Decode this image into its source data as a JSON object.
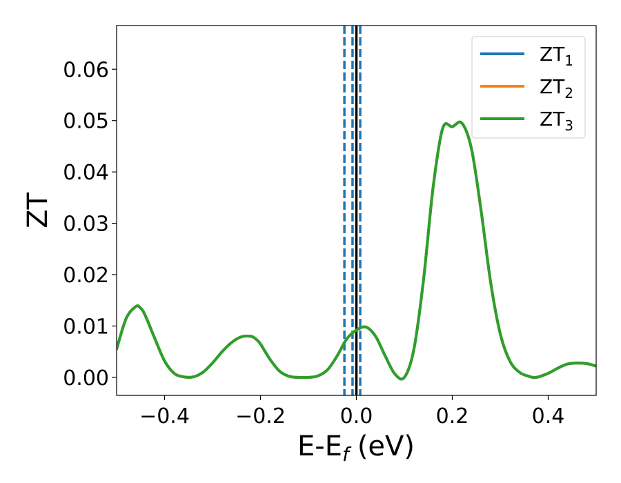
{
  "chart_data": {
    "type": "line",
    "title": "",
    "xlabel": {
      "main": "E-E",
      "sub": "f",
      "unit": "(eV)"
    },
    "ylabel": "ZT",
    "xlim": [
      -0.5,
      0.5
    ],
    "ylim": [
      -0.0035,
      0.0685
    ],
    "x_ticks": [
      -0.4,
      -0.2,
      0.0,
      0.2,
      0.4
    ],
    "x_tick_labels": [
      "−0.4",
      "−0.2",
      "0.0",
      "0.2",
      "0.4"
    ],
    "y_ticks": [
      0.0,
      0.01,
      0.02,
      0.03,
      0.04,
      0.05,
      0.06
    ],
    "y_tick_labels": [
      "0.00",
      "0.01",
      "0.02",
      "0.03",
      "0.04",
      "0.05",
      "0.06"
    ],
    "grid": false,
    "legend_position": "top-right",
    "vlines": [
      {
        "x": -0.025,
        "style": "dashed",
        "color": "#1f77b4"
      },
      {
        "x": -0.008,
        "style": "dashed",
        "color": "#1f77b4"
      },
      {
        "x": 0.008,
        "style": "dashed",
        "color": "#1f77b4"
      },
      {
        "x": 0.0,
        "style": "solid",
        "color": "#000000"
      }
    ],
    "series": [
      {
        "name": {
          "main": "ZT",
          "sub": "1"
        },
        "color": "#1f77b4",
        "x": [
          -0.5,
          -0.48,
          -0.46,
          -0.45,
          -0.44,
          -0.42,
          -0.4,
          -0.38,
          -0.36,
          -0.34,
          -0.32,
          -0.3,
          -0.28,
          -0.26,
          -0.24,
          -0.22,
          -0.21,
          -0.2,
          -0.18,
          -0.16,
          -0.14,
          -0.12,
          -0.1,
          -0.08,
          -0.06,
          -0.04,
          -0.02,
          0.0,
          0.02,
          0.04,
          0.06,
          0.08,
          0.1,
          0.12,
          0.14,
          0.16,
          0.18,
          0.2,
          0.22,
          0.24,
          0.26,
          0.28,
          0.3,
          0.32,
          0.34,
          0.36,
          0.375,
          0.4,
          0.42,
          0.44,
          0.46,
          0.48,
          0.5
        ],
        "y": [
          0.0055,
          0.0115,
          0.0138,
          0.0135,
          0.012,
          0.0075,
          0.0032,
          0.0008,
          0.0001,
          0.0001,
          0.001,
          0.0028,
          0.005,
          0.0068,
          0.0079,
          0.008,
          0.0075,
          0.0065,
          0.0035,
          0.0012,
          0.0002,
          0.0,
          0.0,
          0.0003,
          0.0015,
          0.0042,
          0.0075,
          0.0092,
          0.0098,
          0.008,
          0.0042,
          0.0007,
          0.0,
          0.0055,
          0.019,
          0.037,
          0.0485,
          0.0488,
          0.0495,
          0.0445,
          0.0325,
          0.0185,
          0.0085,
          0.0032,
          0.001,
          0.0002,
          0.0,
          0.0008,
          0.0018,
          0.0026,
          0.0028,
          0.0027,
          0.0022
        ]
      },
      {
        "name": {
          "main": "ZT",
          "sub": "2"
        },
        "color": "#ff7f0e",
        "x": [
          -0.5,
          -0.48,
          -0.46,
          -0.45,
          -0.44,
          -0.42,
          -0.4,
          -0.38,
          -0.36,
          -0.34,
          -0.32,
          -0.3,
          -0.28,
          -0.26,
          -0.24,
          -0.22,
          -0.21,
          -0.2,
          -0.18,
          -0.16,
          -0.14,
          -0.12,
          -0.1,
          -0.08,
          -0.06,
          -0.04,
          -0.02,
          0.0,
          0.02,
          0.04,
          0.06,
          0.08,
          0.1,
          0.12,
          0.14,
          0.16,
          0.18,
          0.2,
          0.22,
          0.24,
          0.26,
          0.28,
          0.3,
          0.32,
          0.34,
          0.36,
          0.375,
          0.4,
          0.42,
          0.44,
          0.46,
          0.48,
          0.5
        ],
        "y": [
          0.0055,
          0.0115,
          0.0138,
          0.0135,
          0.012,
          0.0075,
          0.0032,
          0.0008,
          0.0001,
          0.0001,
          0.001,
          0.0028,
          0.005,
          0.0068,
          0.0079,
          0.008,
          0.0075,
          0.0065,
          0.0035,
          0.0012,
          0.0002,
          0.0,
          0.0,
          0.0003,
          0.0015,
          0.0042,
          0.0075,
          0.0092,
          0.0098,
          0.008,
          0.0042,
          0.0007,
          0.0,
          0.0055,
          0.019,
          0.037,
          0.0485,
          0.0488,
          0.0495,
          0.0445,
          0.0325,
          0.0185,
          0.0085,
          0.0032,
          0.001,
          0.0002,
          0.0,
          0.0008,
          0.0018,
          0.0026,
          0.0028,
          0.0027,
          0.0022
        ]
      },
      {
        "name": {
          "main": "ZT",
          "sub": "3"
        },
        "color": "#2ca02c",
        "x": [
          -0.5,
          -0.48,
          -0.46,
          -0.45,
          -0.44,
          -0.42,
          -0.4,
          -0.38,
          -0.36,
          -0.34,
          -0.32,
          -0.3,
          -0.28,
          -0.26,
          -0.24,
          -0.22,
          -0.21,
          -0.2,
          -0.18,
          -0.16,
          -0.14,
          -0.12,
          -0.1,
          -0.08,
          -0.06,
          -0.04,
          -0.02,
          0.0,
          0.02,
          0.04,
          0.06,
          0.08,
          0.1,
          0.12,
          0.14,
          0.16,
          0.18,
          0.2,
          0.22,
          0.24,
          0.26,
          0.28,
          0.3,
          0.32,
          0.34,
          0.36,
          0.375,
          0.4,
          0.42,
          0.44,
          0.46,
          0.48,
          0.5
        ],
        "y": [
          0.0055,
          0.0115,
          0.0138,
          0.0135,
          0.012,
          0.0075,
          0.0032,
          0.0008,
          0.0001,
          0.0001,
          0.001,
          0.0028,
          0.005,
          0.0068,
          0.0079,
          0.008,
          0.0075,
          0.0065,
          0.0035,
          0.0012,
          0.0002,
          0.0,
          0.0,
          0.0003,
          0.0015,
          0.0042,
          0.0075,
          0.0092,
          0.0098,
          0.008,
          0.0042,
          0.0007,
          0.0,
          0.0055,
          0.019,
          0.037,
          0.0485,
          0.0488,
          0.0495,
          0.0445,
          0.0325,
          0.0185,
          0.0085,
          0.0032,
          0.001,
          0.0002,
          0.0,
          0.0008,
          0.0018,
          0.0026,
          0.0028,
          0.0027,
          0.0022
        ]
      }
    ]
  }
}
